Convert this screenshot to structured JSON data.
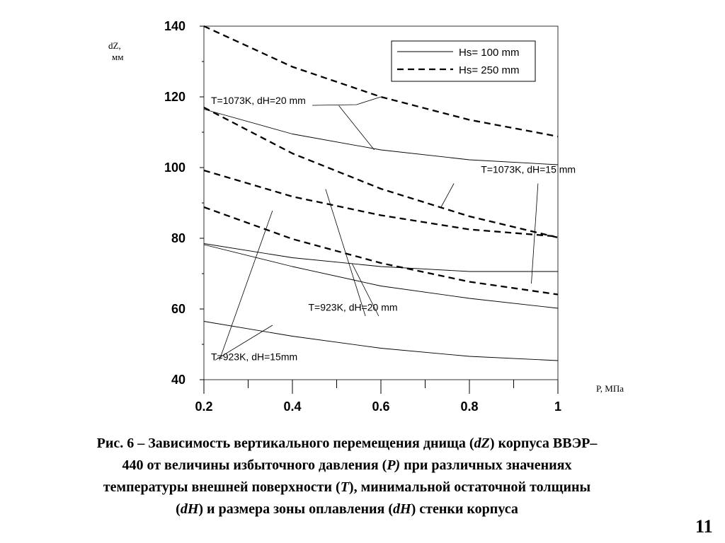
{
  "chart_data": {
    "type": "line",
    "x": [
      0.2,
      0.4,
      0.6,
      0.8,
      1
    ],
    "x_tick_labels": [
      "0.2",
      "0.4",
      "0.6",
      "0.8",
      "1"
    ],
    "y_ticks": [
      40,
      60,
      80,
      100,
      120,
      140
    ],
    "y_tick_labels": [
      "40",
      "60",
      "80",
      "100",
      "120",
      "140"
    ],
    "xlim": [
      0.2,
      1
    ],
    "ylim": [
      40,
      140
    ],
    "xlabel": "P, МПа",
    "ylabel_line1": "dZ,",
    "ylabel_line2": "мм",
    "grid": false,
    "legend": {
      "position": "top-right",
      "entries": [
        {
          "label": "Hs= 100 mm",
          "style": "solid"
        },
        {
          "label": "Hs= 250 mm",
          "style": "dashed"
        }
      ]
    },
    "series": [
      {
        "style": "solid",
        "values": [
          116.5,
          109.5,
          105,
          102.2,
          100.8
        ]
      },
      {
        "style": "dashed",
        "values": [
          140,
          128.5,
          120,
          113.5,
          108.8
        ]
      },
      {
        "style": "solid",
        "values": [
          78.5,
          74.5,
          72,
          70.6,
          70.6
        ]
      },
      {
        "style": "dashed",
        "values": [
          117,
          104,
          94,
          86.2,
          80.2
        ]
      },
      {
        "style": "solid",
        "values": [
          78.2,
          72,
          66.5,
          63,
          60.2
        ]
      },
      {
        "style": "dashed",
        "values": [
          99.2,
          91.8,
          86.5,
          82.5,
          80.5
        ]
      },
      {
        "style": "solid",
        "values": [
          56.5,
          52.3,
          48.9,
          46.6,
          45.4
        ]
      },
      {
        "style": "dashed",
        "values": [
          88.8,
          79.8,
          73,
          67.7,
          64.1
        ]
      }
    ],
    "annotations": [
      {
        "text": "T=1073K, dH=20 mm",
        "anchor": [
          0.2,
          118
        ],
        "leaders": [
          [
            [
              0.6,
              120.0
            ],
            [
              0.545,
              117.8
            ],
            [
              0.445,
              117.6
            ]
          ],
          [
            [
              0.505,
              117.5
            ],
            [
              0.585,
              105
            ]
          ]
        ]
      },
      {
        "text": "T=1073K, dH=15 mm",
        "anchor": [
          0.81,
          98.5
        ],
        "leaders": [
          [
            [
              0.765,
              95.5
            ],
            [
              0.735,
              88.6
            ]
          ],
          [
            [
              0.955,
              95.5
            ],
            [
              0.94,
              67.2
            ]
          ]
        ]
      },
      {
        "text": "T=923K, dH=20 mm",
        "anchor": [
          0.42,
          59.5
        ],
        "leaders": [
          [
            [
              0.595,
              58
            ],
            [
              0.535,
              72.8
            ]
          ],
          [
            [
              0.565,
              58
            ],
            [
              0.475,
              93.9
            ]
          ]
        ]
      },
      {
        "text": "T=923K, dH=15mm",
        "anchor": [
          0.2,
          45.5
        ],
        "leaders": [
          [
            [
              0.225,
              45.5
            ],
            [
              0.355,
              55.4
            ]
          ],
          [
            [
              0.235,
              45.5
            ],
            [
              0.355,
              87.8
            ]
          ]
        ]
      }
    ]
  },
  "caption": {
    "line1_a": "Рис. 6 – Зависимость вертикального перемещения днища (",
    "line1_b": "dZ",
    "line1_c": ") корпуса ВВЭР–",
    "line2_a": "440 от величины избыточного давления (",
    "line2_b": "P)",
    "line2_c": " при различных значениях",
    "line3_a": "температуры внешней поверхности (",
    "line3_b": "T",
    "line3_c": "), минимальной остаточной толщины",
    "line4_a": "(",
    "line4_b": "dH",
    "line4_c": ") и размера зоны оплавления (",
    "line4_d": "dH",
    "line4_e": ") стенки корпуса"
  },
  "page_number": "11"
}
